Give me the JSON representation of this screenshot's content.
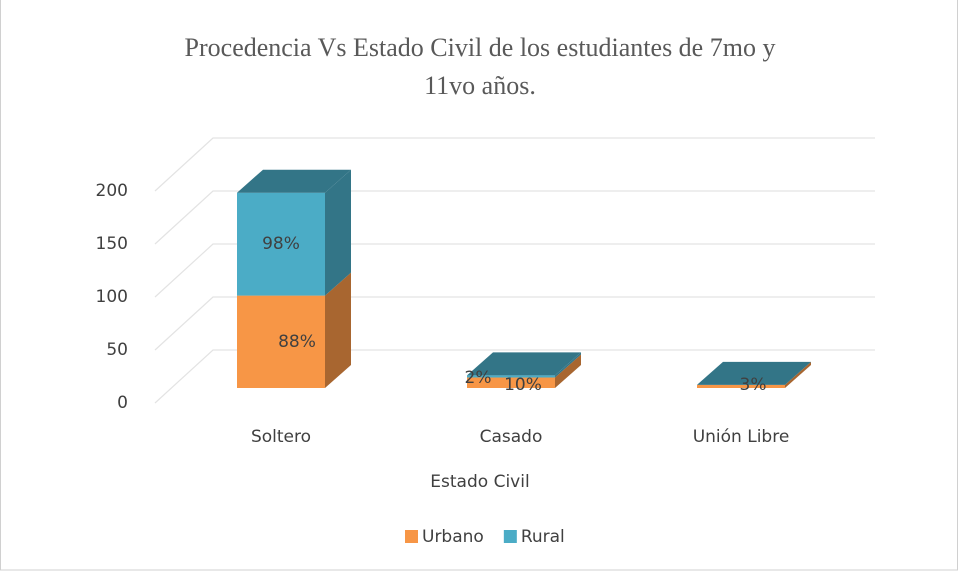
{
  "chart_data": {
    "type": "bar3d_stacked",
    "title": "Procedencia Vs Estado Civil de los estudiantes de 7mo y",
    "subtitle": "11vo años.",
    "x_label": "Estado Civil",
    "categories": [
      "Soltero",
      "Casado",
      "Unión Libre"
    ],
    "series": [
      {
        "name": "Urbano",
        "color": "#f79646",
        "values": [
          88,
          10,
          3
        ],
        "value_labels": [
          "88%",
          "10%",
          "3%"
        ]
      },
      {
        "name": "Rural",
        "color": "#4bacc6",
        "values": [
          98,
          2,
          0
        ],
        "value_labels": [
          "98%",
          "2%",
          null
        ]
      }
    ],
    "ylim": [
      0,
      200
    ],
    "yticks": [
      0,
      50,
      100,
      150,
      200
    ],
    "grid": true,
    "legend": "bottom"
  }
}
